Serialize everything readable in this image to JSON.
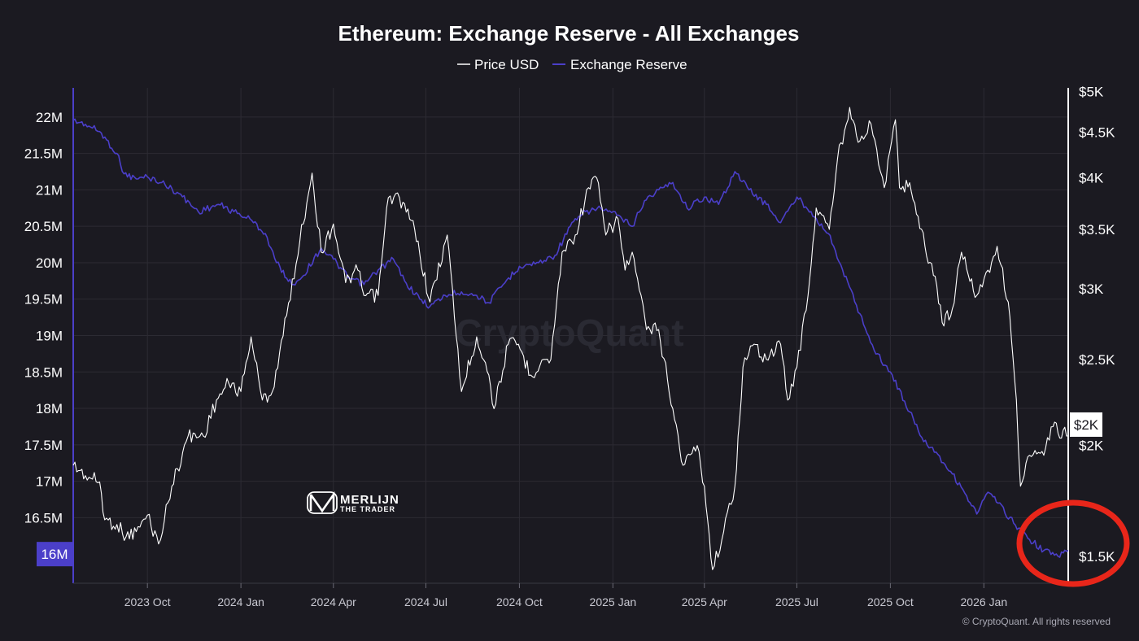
{
  "colors": {
    "background": "#1b1a21",
    "price": "#ffffff",
    "reserve": "#4b3fc9",
    "highlight": "#e8261a",
    "grid": "#2c2b33"
  },
  "watermark": "CryptoQuant",
  "copyright": "© CryptoQuant. All rights reserved",
  "logo": {
    "main": "MERLIJN",
    "sub": "THE TRADER"
  },
  "chart_data": {
    "type": "line",
    "title": "Ethereum: Exchange Reserve - All Exchanges",
    "legend": [
      "Price USD",
      "Exchange Reserve"
    ],
    "legend_position": "top-center",
    "grid": true,
    "x_range": [
      "2023-07-20",
      "2026-03-25"
    ],
    "x_ticks": [
      {
        "label": "2023 Oct",
        "date": "2023-10-01"
      },
      {
        "label": "2024 Jan",
        "date": "2024-01-01"
      },
      {
        "label": "2024 Apr",
        "date": "2024-04-01"
      },
      {
        "label": "2024 Jul",
        "date": "2024-07-01"
      },
      {
        "label": "2024 Oct",
        "date": "2024-10-01"
      },
      {
        "label": "2025 Jan",
        "date": "2025-01-01"
      },
      {
        "label": "2025 Apr",
        "date": "2025-04-01"
      },
      {
        "label": "2025 Jul",
        "date": "2025-07-01"
      },
      {
        "label": "2025 Oct",
        "date": "2025-10-01"
      },
      {
        "label": "2026 Jan",
        "date": "2026-01-01"
      }
    ],
    "y_left": {
      "axis": "Exchange Reserve",
      "range": [
        15.6,
        22.4
      ],
      "ticks": [
        {
          "label": "22M",
          "value": 22
        },
        {
          "label": "21.5M",
          "value": 21.5
        },
        {
          "label": "21M",
          "value": 21
        },
        {
          "label": "20.5M",
          "value": 20.5
        },
        {
          "label": "20M",
          "value": 20
        },
        {
          "label": "19.5M",
          "value": 19.5
        },
        {
          "label": "19M",
          "value": 19
        },
        {
          "label": "18.5M",
          "value": 18.5
        },
        {
          "label": "18M",
          "value": 18
        },
        {
          "label": "17.5M",
          "value": 17.5
        },
        {
          "label": "17M",
          "value": 17
        },
        {
          "label": "16.5M",
          "value": 16.5
        }
      ],
      "current_label": "16M",
      "current_value": 16.0
    },
    "y_right": {
      "axis": "Price USD",
      "scale": "log",
      "range": [
        1400,
        5050
      ],
      "ticks": [
        {
          "label": "$5K",
          "value": 5000
        },
        {
          "label": "$4.5K",
          "value": 4500
        },
        {
          "label": "$4K",
          "value": 4000
        },
        {
          "label": "$3.5K",
          "value": 3500
        },
        {
          "label": "$3K",
          "value": 3000
        },
        {
          "label": "$2.5K",
          "value": 2500
        },
        {
          "label": "$2K",
          "value": 2000
        },
        {
          "label": "$1.5K",
          "value": 1500
        }
      ],
      "current_label": "$2K",
      "current_value": 2050
    },
    "series": [
      {
        "name": "Price USD",
        "axis": "right",
        "points": [
          [
            "2023-07-20",
            1900
          ],
          [
            "2023-08-01",
            1850
          ],
          [
            "2023-08-15",
            1820
          ],
          [
            "2023-08-20",
            1650
          ],
          [
            "2023-09-01",
            1630
          ],
          [
            "2023-09-10",
            1580
          ],
          [
            "2023-09-20",
            1600
          ],
          [
            "2023-10-01",
            1670
          ],
          [
            "2023-10-12",
            1550
          ],
          [
            "2023-10-25",
            1800
          ],
          [
            "2023-11-10",
            2050
          ],
          [
            "2023-11-25",
            2050
          ],
          [
            "2023-12-08",
            2250
          ],
          [
            "2023-12-20",
            2350
          ],
          [
            "2024-01-01",
            2300
          ],
          [
            "2024-01-11",
            2650
          ],
          [
            "2024-01-22",
            2250
          ],
          [
            "2024-02-01",
            2300
          ],
          [
            "2024-02-15",
            2800
          ],
          [
            "2024-02-28",
            3400
          ],
          [
            "2024-03-11",
            4050
          ],
          [
            "2024-03-20",
            3300
          ],
          [
            "2024-04-01",
            3550
          ],
          [
            "2024-04-13",
            3050
          ],
          [
            "2024-04-25",
            3150
          ],
          [
            "2024-05-01",
            2950
          ],
          [
            "2024-05-15",
            2950
          ],
          [
            "2024-05-25",
            3800
          ],
          [
            "2024-06-05",
            3800
          ],
          [
            "2024-06-20",
            3500
          ],
          [
            "2024-07-05",
            2900
          ],
          [
            "2024-07-22",
            3450
          ],
          [
            "2024-08-05",
            2300
          ],
          [
            "2024-08-20",
            2650
          ],
          [
            "2024-09-01",
            2400
          ],
          [
            "2024-09-06",
            2200
          ],
          [
            "2024-09-20",
            2600
          ],
          [
            "2024-09-30",
            2600
          ],
          [
            "2024-10-12",
            2400
          ],
          [
            "2024-10-25",
            2500
          ],
          [
            "2024-11-01",
            2500
          ],
          [
            "2024-11-12",
            3300
          ],
          [
            "2024-11-25",
            3450
          ],
          [
            "2024-12-08",
            3900
          ],
          [
            "2024-12-16",
            4000
          ],
          [
            "2024-12-25",
            3450
          ],
          [
            "2025-01-06",
            3600
          ],
          [
            "2025-01-13",
            3150
          ],
          [
            "2025-01-20",
            3300
          ],
          [
            "2025-02-03",
            2700
          ],
          [
            "2025-02-15",
            2700
          ],
          [
            "2025-03-01",
            2200
          ],
          [
            "2025-03-11",
            1900
          ],
          [
            "2025-03-25",
            2000
          ],
          [
            "2025-04-01",
            1800
          ],
          [
            "2025-04-09",
            1450
          ],
          [
            "2025-04-20",
            1600
          ],
          [
            "2025-05-01",
            1800
          ],
          [
            "2025-05-09",
            2450
          ],
          [
            "2025-05-20",
            2600
          ],
          [
            "2025-06-01",
            2500
          ],
          [
            "2025-06-15",
            2600
          ],
          [
            "2025-06-22",
            2250
          ],
          [
            "2025-07-01",
            2450
          ],
          [
            "2025-07-12",
            2950
          ],
          [
            "2025-07-20",
            3700
          ],
          [
            "2025-08-02",
            3500
          ],
          [
            "2025-08-10",
            4200
          ],
          [
            "2025-08-22",
            4800
          ],
          [
            "2025-09-01",
            4400
          ],
          [
            "2025-09-12",
            4600
          ],
          [
            "2025-09-25",
            3900
          ],
          [
            "2025-10-06",
            4650
          ],
          [
            "2025-10-10",
            3900
          ],
          [
            "2025-10-20",
            3950
          ],
          [
            "2025-11-04",
            3350
          ],
          [
            "2025-11-14",
            3100
          ],
          [
            "2025-11-21",
            2750
          ],
          [
            "2025-12-01",
            2850
          ],
          [
            "2025-12-10",
            3300
          ],
          [
            "2025-12-25",
            2950
          ],
          [
            "2026-01-05",
            3150
          ],
          [
            "2026-01-14",
            3350
          ],
          [
            "2026-01-25",
            2900
          ],
          [
            "2026-02-02",
            2250
          ],
          [
            "2026-02-06",
            1800
          ],
          [
            "2026-02-15",
            1950
          ],
          [
            "2026-03-01",
            1950
          ],
          [
            "2026-03-10",
            2100
          ],
          [
            "2026-03-25",
            2050
          ]
        ]
      },
      {
        "name": "Exchange Reserve",
        "axis": "left",
        "points": [
          [
            "2023-07-20",
            21.95
          ],
          [
            "2023-08-01",
            21.9
          ],
          [
            "2023-08-15",
            21.8
          ],
          [
            "2023-09-01",
            21.5
          ],
          [
            "2023-09-08",
            21.22
          ],
          [
            "2023-09-20",
            21.15
          ],
          [
            "2023-10-01",
            21.18
          ],
          [
            "2023-10-15",
            21.1
          ],
          [
            "2023-11-01",
            20.95
          ],
          [
            "2023-11-20",
            20.7
          ],
          [
            "2023-12-10",
            20.8
          ],
          [
            "2023-12-25",
            20.7
          ],
          [
            "2024-01-10",
            20.6
          ],
          [
            "2024-01-25",
            20.4
          ],
          [
            "2024-02-05",
            20.0
          ],
          [
            "2024-02-20",
            19.7
          ],
          [
            "2024-03-01",
            19.8
          ],
          [
            "2024-03-20",
            20.2
          ],
          [
            "2024-04-01",
            20.05
          ],
          [
            "2024-04-15",
            19.8
          ],
          [
            "2024-05-01",
            19.7
          ],
          [
            "2024-05-15",
            19.9
          ],
          [
            "2024-05-30",
            20.05
          ],
          [
            "2024-06-10",
            19.75
          ],
          [
            "2024-06-25",
            19.5
          ],
          [
            "2024-07-05",
            19.4
          ],
          [
            "2024-07-20",
            19.55
          ],
          [
            "2024-08-05",
            19.6
          ],
          [
            "2024-08-20",
            19.55
          ],
          [
            "2024-09-01",
            19.45
          ],
          [
            "2024-09-15",
            19.7
          ],
          [
            "2024-10-01",
            19.95
          ],
          [
            "2024-10-20",
            20.0
          ],
          [
            "2024-11-05",
            20.1
          ],
          [
            "2024-11-20",
            20.5
          ],
          [
            "2024-12-05",
            20.7
          ],
          [
            "2024-12-20",
            20.75
          ],
          [
            "2025-01-05",
            20.65
          ],
          [
            "2025-01-20",
            20.5
          ],
          [
            "2025-02-01",
            20.85
          ],
          [
            "2025-02-15",
            21.0
          ],
          [
            "2025-03-01",
            21.1
          ],
          [
            "2025-03-15",
            20.75
          ],
          [
            "2025-04-01",
            20.9
          ],
          [
            "2025-04-15",
            20.8
          ],
          [
            "2025-05-01",
            21.25
          ],
          [
            "2025-05-15",
            21.0
          ],
          [
            "2025-06-01",
            20.8
          ],
          [
            "2025-06-15",
            20.55
          ],
          [
            "2025-07-01",
            20.9
          ],
          [
            "2025-07-15",
            20.7
          ],
          [
            "2025-08-01",
            20.4
          ],
          [
            "2025-08-15",
            19.9
          ],
          [
            "2025-09-01",
            19.3
          ],
          [
            "2025-09-15",
            18.8
          ],
          [
            "2025-10-01",
            18.5
          ],
          [
            "2025-10-15",
            18.1
          ],
          [
            "2025-11-01",
            17.6
          ],
          [
            "2025-11-15",
            17.4
          ],
          [
            "2025-12-01",
            17.1
          ],
          [
            "2025-12-15",
            16.8
          ],
          [
            "2025-12-25",
            16.55
          ],
          [
            "2026-01-05",
            16.85
          ],
          [
            "2026-01-15",
            16.7
          ],
          [
            "2026-02-01",
            16.4
          ],
          [
            "2026-02-15",
            16.2
          ],
          [
            "2026-03-01",
            16.05
          ],
          [
            "2026-03-15",
            15.97
          ],
          [
            "2026-03-25",
            16.05
          ]
        ]
      }
    ]
  }
}
